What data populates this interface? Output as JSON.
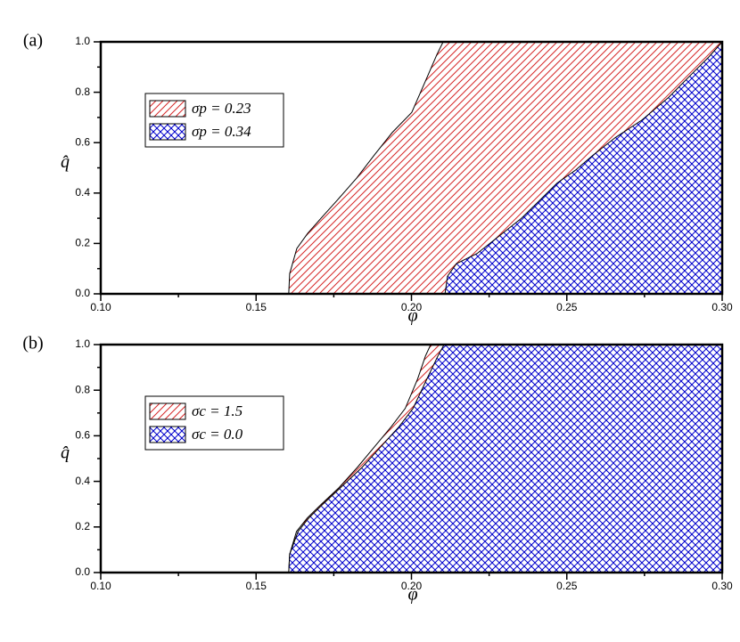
{
  "chart_data": [
    {
      "type": "area",
      "panel_label": "(a)",
      "xlabel": "φ",
      "ylabel": "q̂",
      "xlim": [
        0.1,
        0.3
      ],
      "ylim": [
        0,
        1
      ],
      "xticks": [
        {
          "value": 0.1,
          "label": "0.10"
        },
        0.15,
        {
          "value": 0.2,
          "label": "0.20"
        },
        0.25,
        {
          "value": 0.3,
          "label": "0.30"
        }
      ],
      "yticks": [
        {
          "value": 0,
          "label": "0.0"
        },
        0.2,
        0.4,
        0.6,
        0.8,
        {
          "value": 1,
          "label": "1.0"
        }
      ],
      "legend": "upper left",
      "series": [
        {
          "name": "σp = 0.23",
          "color": "#d62728",
          "hatch": "diagonal",
          "x": [
            0.1605,
            0.1608,
            0.1631,
            0.1666,
            0.1709,
            0.176,
            0.1824,
            0.188,
            0.1938,
            0.2001,
            0.2047,
            0.2082,
            0.2102
          ],
          "values": [
            0,
            0.08,
            0.18,
            0.24,
            0.3,
            0.37,
            0.46,
            0.55,
            0.64,
            0.72,
            0.85,
            0.95,
            1.0
          ]
        },
        {
          "name": "σp = 0.34",
          "color": "#0000cc",
          "hatch": "cross",
          "x": [
            0.2108,
            0.2116,
            0.2145,
            0.2211,
            0.2283,
            0.2354,
            0.2412,
            0.2469,
            0.2527,
            0.2584,
            0.2656,
            0.2742,
            0.2828,
            0.29,
            0.2957,
            0.3
          ],
          "values": [
            0,
            0.07,
            0.12,
            0.16,
            0.23,
            0.3,
            0.37,
            0.44,
            0.49,
            0.55,
            0.62,
            0.69,
            0.78,
            0.87,
            0.94,
            1.0
          ]
        }
      ]
    },
    {
      "type": "area",
      "panel_label": "(b)",
      "xlabel": "φ",
      "ylabel": "q̂",
      "xlim": [
        0.1,
        0.3
      ],
      "ylim": [
        0,
        1
      ],
      "xticks": [
        {
          "value": 0.1,
          "label": "0.10"
        },
        0.15,
        {
          "value": 0.2,
          "label": "0.20"
        },
        0.25,
        {
          "value": 0.3,
          "label": "0.30"
        }
      ],
      "yticks": [
        {
          "value": 0,
          "label": "0.0"
        },
        0.2,
        0.4,
        0.6,
        0.8,
        {
          "value": 1,
          "label": "1.0"
        }
      ],
      "legend": "upper left",
      "series": [
        {
          "name": "σc = 1.5",
          "color": "#d62728",
          "hatch": "diagonal",
          "x": [
            0.1605,
            0.1608,
            0.163,
            0.1665,
            0.171,
            0.1765,
            0.1825,
            0.188,
            0.1935,
            0.198,
            0.202,
            0.2045,
            0.2062
          ],
          "values": [
            0,
            0.08,
            0.18,
            0.24,
            0.3,
            0.37,
            0.46,
            0.55,
            0.64,
            0.72,
            0.85,
            0.95,
            1.0
          ]
        },
        {
          "name": "σc = 0.0",
          "color": "#0000cc",
          "hatch": "cross",
          "x": [
            0.1605,
            0.1608,
            0.1635,
            0.167,
            0.1715,
            0.177,
            0.184,
            0.19,
            0.196,
            0.2005,
            0.205,
            0.2085,
            0.2105
          ],
          "values": [
            0,
            0.08,
            0.18,
            0.24,
            0.3,
            0.37,
            0.46,
            0.55,
            0.64,
            0.72,
            0.85,
            0.95,
            1.0
          ]
        }
      ]
    }
  ]
}
